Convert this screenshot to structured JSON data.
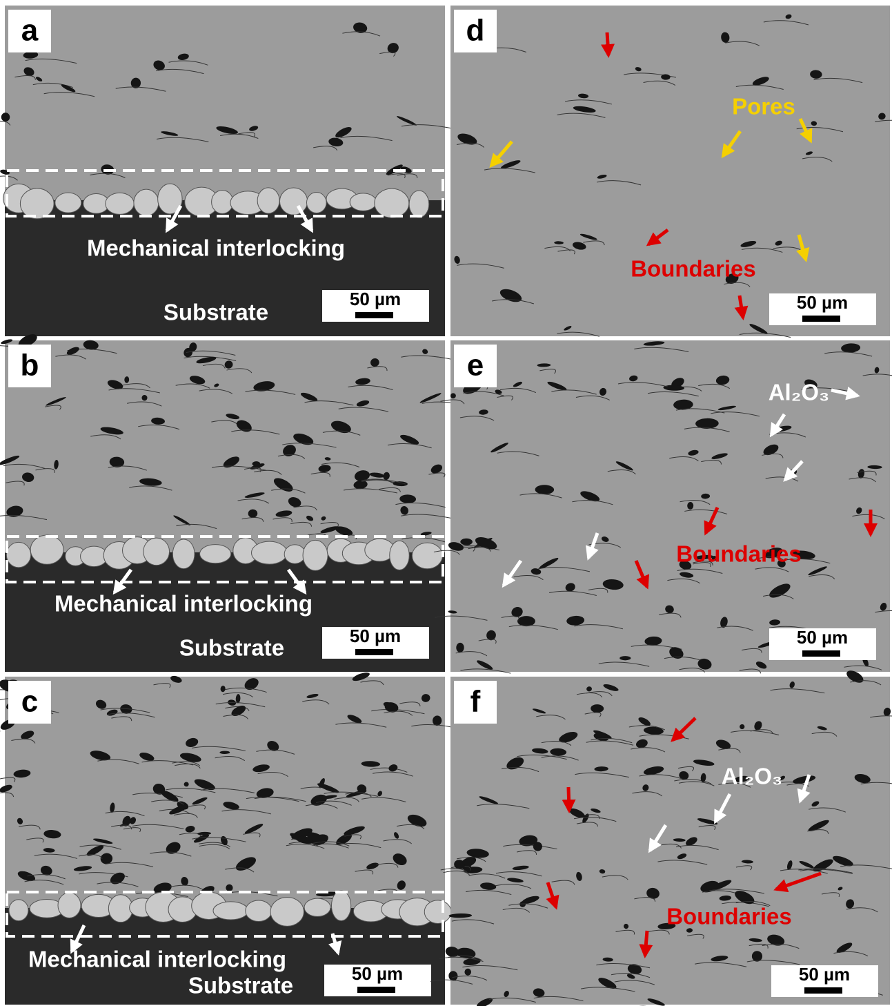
{
  "panels": [
    {
      "letter": "a",
      "labels": [
        "Mechanical interlocking",
        "Substrate"
      ],
      "scale_bar": "50 µm"
    },
    {
      "letter": "b",
      "labels": [
        "Mechanical interlocking",
        "Substrate"
      ],
      "scale_bar": "50 µm"
    },
    {
      "letter": "c",
      "labels": [
        "Mechanical interlocking",
        "Substrate"
      ],
      "scale_bar": "50 µm"
    },
    {
      "letter": "d",
      "labels": [
        "Pores",
        "Boundaries"
      ],
      "scale_bar": "50 µm"
    },
    {
      "letter": "e",
      "labels": [
        "Al₂O₃",
        "Boundaries"
      ],
      "scale_bar": "50 µm"
    },
    {
      "letter": "f",
      "labels": [
        "Al₂O₃",
        "Boundaries"
      ],
      "scale_bar": "50 µm"
    }
  ]
}
